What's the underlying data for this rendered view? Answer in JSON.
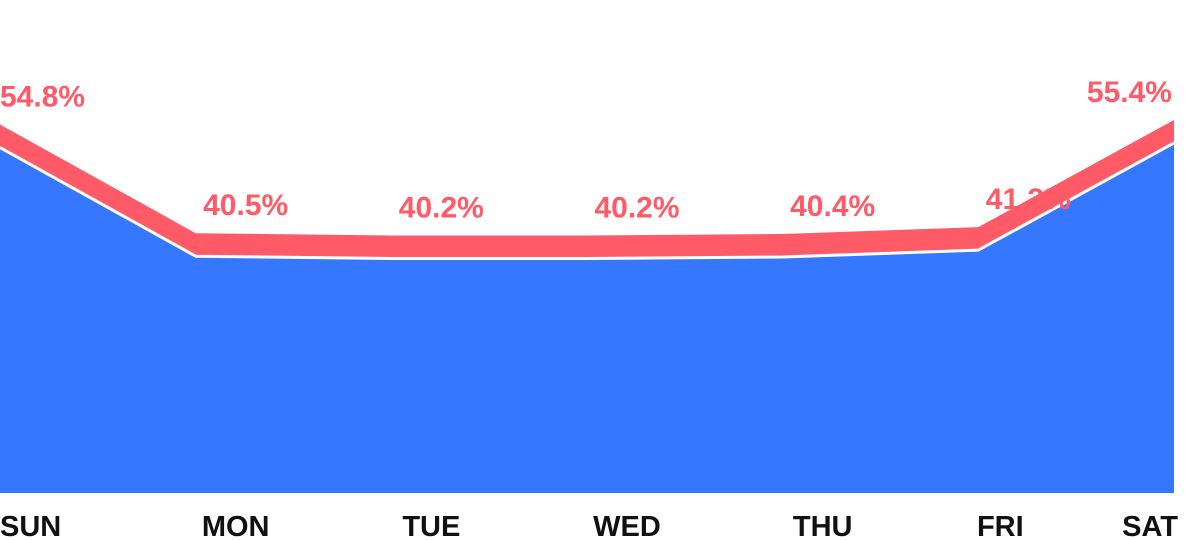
{
  "chart_data": {
    "type": "area",
    "categories": [
      "SUN",
      "MON",
      "TUE",
      "WED",
      "THU",
      "FRI",
      "SAT"
    ],
    "series": [
      {
        "values": [
          54.8,
          40.5,
          40.2,
          40.2,
          40.4,
          41.3,
          55.4
        ],
        "value_labels": [
          "54.8%",
          "40.5%",
          "40.2%",
          "40.2%",
          "40.4%",
          "41.3%",
          "55.4%"
        ]
      }
    ],
    "title": "",
    "xlabel": "",
    "ylabel": "",
    "grid": false,
    "legend": "none",
    "colors": {
      "area": "#3578ff",
      "band": "#ff5a67",
      "separator": "#ffffff",
      "label": "#ff5a67",
      "tick": "#111111"
    }
  }
}
